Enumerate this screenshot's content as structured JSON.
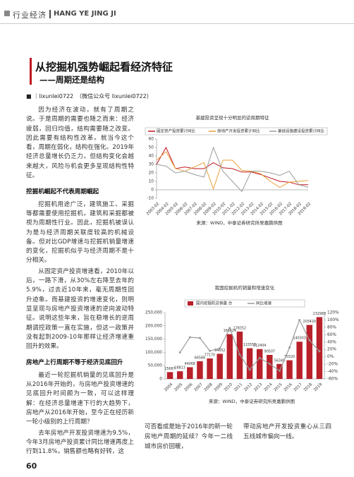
{
  "header": {
    "section": "行业经济",
    "pinyin": "HANG YE JING JI"
  },
  "article": {
    "title": "从挖掘机强势崛起看经济特征",
    "subtitle": "——周期还是结构",
    "byline": "■ ｜lixunlei0722　（微信公众号 lixunlei0722）"
  },
  "left_column": [
    {
      "text": "因为经济在波动，就有了周期之说。于是周期的需要也随之而来：经济疲弱，回归均值，结构需要随之改变。因此需要有结构性改革。就当今这个看，周期在弱化，结构在强化。2019年经济总量增长仍乏力，但结构变化会越来越大，风险与机会更多呈现结构性特征。"
    },
    {
      "heading": "挖掘机崛起不代表周期崛起"
    },
    {
      "text": "挖掘机用途广泛，建筑施工、采掘等都需要使用挖掘机，建筑和采掘都被视为周期性行业。因此，挖掘机被误认为是与经济周期关联度较高的机械设备。但对比GDP增速与挖掘机销量增速的变化，挖掘机似乎与经济周期不是十分相关。"
    },
    {
      "text": "从固定资产投资增速看，2010年以后，一路下滑，从30%左右降至去年的5.9%，过去近10年来，毫无周期性回升迹象。而基建投资的增速变化，则明显呈现与房地产投资增速的逆向波动特征。说明这些年来，旨在稳增长的逆周期调控政策一直在实施，但这一政策并没有起到2009-10年那样让经济增速重回升的效果。"
    },
    {
      "heading": "房地产上行周期不等于经济见底回升"
    },
    {
      "text": "最近一轮挖掘机销量的见底回升是从2016年开始的，与房地产投资增速的见底回升时间颇为一致，可以这样理解：在经济总量增速下行的大趋势下，房地产从2016年开始，至今正在经历新一轮小级别的上行周期？"
    },
    {
      "text": "去年房地产开发投资增速为9.5%，今年3月房地产投资累计同比增速再度上行到11.8%，销售额也略有好转，这"
    }
  ],
  "bottom_text": [
    "可否看成是始于2016年的新一轮房地产周期的延续？今年一二线城市房价回暖，",
    "带动房地产开发投资重心从三四五线城市偏向一线。"
  ],
  "page_number": 60,
  "chart_data": [
    {
      "type": "line",
      "title": "基建投资呈现十分明显的逆周期特征",
      "source": "来源：WIND，中泰证券研究所吴嘉鹏供图",
      "categories": [
        "2003-02",
        "2004-02",
        "2005-02",
        "2006-02",
        "2007-02",
        "2008-02",
        "2009-02",
        "2010-02",
        "2011-02",
        "2012-02",
        "2013-02",
        "2014-02",
        "2015-02",
        "2016-02",
        "2017-02",
        "2018-02",
        "2019-02"
      ],
      "series": [
        {
          "name": "固定资产投资累计同比",
          "color": "#c0161e",
          "values": [
            30,
            50,
            25,
            27,
            25,
            25,
            32,
            26,
            25,
            21,
            21,
            18,
            14,
            10,
            9,
            6,
            6
          ]
        },
        {
          "name": "房地产开发投资累计同比",
          "color": "#e8a13a",
          "values": [
            35,
            45,
            25,
            22,
            27,
            32,
            1,
            35,
            35,
            23,
            22,
            19,
            10,
            3,
            9,
            10,
            11
          ]
        },
        {
          "name": "基础设施建设投资累计同比",
          "color": "#9a9a9a",
          "values": [
            30,
            28,
            20,
            22,
            18,
            15,
            50,
            22,
            10,
            -2,
            22,
            22,
            20,
            17,
            22,
            6,
            3
          ]
        }
      ],
      "ylim": [
        -10,
        60
      ],
      "yticks": [
        -10,
        0,
        10,
        20,
        30,
        40,
        50,
        60
      ],
      "grid": false
    },
    {
      "type": "bar",
      "title": "我国挖掘机的销量和增速变化",
      "source": "来源：WIND，中泰证券研究所吴嘉鹏供图",
      "categories": [
        "2004",
        "2005",
        "2006",
        "2007",
        "2008",
        "2009",
        "2010",
        "2011",
        "2012",
        "2013",
        "2014",
        "2015",
        "2016",
        "2017",
        "2018",
        "2019"
      ],
      "series": [
        {
          "name": "国内挖掘机总销量 台",
          "color": "#b8202a",
          "values": [
            25687,
            28813,
            44068,
            66586,
            77170,
            94652,
            168624,
            178352,
            115553,
            112404,
            90507,
            56349,
            70320,
            140303,
            203420,
            232983
          ]
        },
        {
          "name": "同比增速",
          "type": "line",
          "axis": "y2",
          "color": "#9a9a9a",
          "values": [
            null,
            12,
            53,
            51,
            16,
            23,
            78,
            6,
            -35,
            -3,
            -19,
            -38,
            25,
            100,
            45,
            15
          ]
        }
      ],
      "ylim": [
        0,
        250000
      ],
      "yticks": [
        0,
        {
          "value": 50000,
          "label": "50,000"
        },
        {
          "value": 100000,
          "label": "100,000"
        },
        {
          "value": 150000,
          "label": "150,000"
        },
        {
          "value": 200000,
          "label": "200,000"
        },
        {
          "value": 250000,
          "label": "250,000"
        }
      ],
      "y2lim": [
        -60,
        120
      ],
      "y2ticks": [
        {
          "value": -60,
          "label": "-60%"
        },
        {
          "value": -40,
          "label": "-40%"
        },
        {
          "value": -20,
          "label": "-20%"
        },
        {
          "value": 0,
          "label": "0%"
        },
        {
          "value": 20,
          "label": "20%"
        },
        {
          "value": 40,
          "label": "40%"
        },
        {
          "value": 60,
          "label": "60%"
        },
        {
          "value": 80,
          "label": "80%"
        },
        {
          "value": 100,
          "label": "100%"
        },
        {
          "value": 120,
          "label": "120%"
        }
      ],
      "grid": false
    }
  ]
}
